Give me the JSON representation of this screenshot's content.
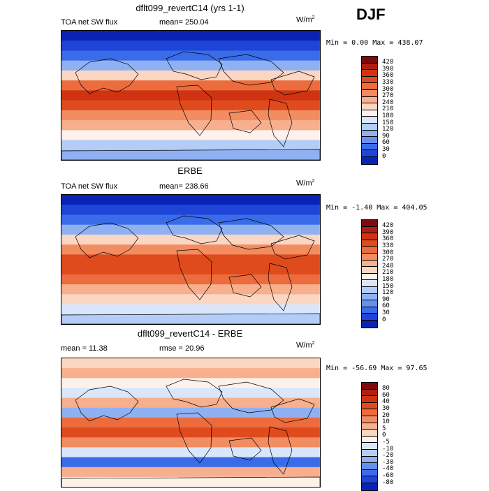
{
  "season": "DJF",
  "panels": [
    {
      "title": "dflt099_revertC14 (yrs 1-1)",
      "left_label": "TOA net SW flux",
      "stat_label": "mean= 250.04",
      "units": "W/m",
      "units_exp": "2",
      "minmax": "Min =   0.00 Max = 438.07",
      "colorbar": {
        "labels": [
          "420",
          "390",
          "360",
          "330",
          "300",
          "270",
          "240",
          "210",
          "180",
          "150",
          "120",
          "90",
          "60",
          "30",
          "0"
        ],
        "colors": [
          "#7d0b0b",
          "#b01f10",
          "#cf3311",
          "#e04b1d",
          "#ec6c3d",
          "#f28c61",
          "#f7af8e",
          "#fbd6c2",
          "#fdf1e9",
          "#d9e6fb",
          "#b3cdf7",
          "#8fb1f2",
          "#6591ee",
          "#3a6ce9",
          "#1e45d8",
          "#0a23b5"
        ]
      },
      "bands": [
        "#0a23b5",
        "#1e45d8",
        "#3a6ce9",
        "#8fb1f2",
        "#fbd6c2",
        "#ec6c3d",
        "#cf3311",
        "#e04b1d",
        "#f28c61",
        "#f7af8e",
        "#fdf1e9",
        "#b3cdf7",
        "#8fb1f2"
      ]
    },
    {
      "title": "ERBE",
      "left_label": "TOA net SW flux",
      "stat_label": "mean= 238.66",
      "units": "W/m",
      "units_exp": "2",
      "minmax": "Min =  -1.40 Max = 404.05",
      "colorbar": {
        "labels": [
          "420",
          "390",
          "360",
          "330",
          "300",
          "270",
          "240",
          "210",
          "180",
          "150",
          "120",
          "90",
          "60",
          "30",
          "0"
        ],
        "colors": [
          "#7d0b0b",
          "#b01f10",
          "#cf3311",
          "#e04b1d",
          "#ec6c3d",
          "#f28c61",
          "#f7af8e",
          "#fbd6c2",
          "#fdf1e9",
          "#d9e6fb",
          "#b3cdf7",
          "#8fb1f2",
          "#6591ee",
          "#3a6ce9",
          "#1e45d8",
          "#0a23b5"
        ]
      },
      "bands": [
        "#0a23b5",
        "#1e45d8",
        "#3a6ce9",
        "#8fb1f2",
        "#fbd6c2",
        "#f28c61",
        "#e04b1d",
        "#e04b1d",
        "#ec6c3d",
        "#f7af8e",
        "#fbd6c2",
        "#d9e6fb",
        "#b3cdf7"
      ]
    },
    {
      "title": "dflt099_revertC14 - ERBE",
      "left_label": "mean =  11.38",
      "stat_label": "rmse =  20.96",
      "units": "W/m",
      "units_exp": "2",
      "minmax": "Min = -56.69 Max =  97.65",
      "colorbar": {
        "labels": [
          "80",
          "60",
          "40",
          "30",
          "20",
          "10",
          "5",
          "0",
          "-5",
          "-10",
          "-20",
          "-30",
          "-40",
          "-60",
          "-80"
        ],
        "colors": [
          "#7d0b0b",
          "#b01f10",
          "#cf3311",
          "#e04b1d",
          "#ec6c3d",
          "#f28c61",
          "#f7af8e",
          "#fbd6c2",
          "#fdf1e9",
          "#d9e6fb",
          "#b3cdf7",
          "#8fb1f2",
          "#6591ee",
          "#3a6ce9",
          "#1e45d8",
          "#0a23b5"
        ]
      },
      "bands": [
        "#fbd6c2",
        "#f7af8e",
        "#fdf1e9",
        "#d9e6fb",
        "#f7af8e",
        "#8fb1f2",
        "#ec6c3d",
        "#e04b1d",
        "#f28c61",
        "#d9e6fb",
        "#3a6ce9",
        "#f7af8e",
        "#fdf1e9"
      ]
    }
  ],
  "chart_data": [
    {
      "type": "heatmap",
      "title": "dflt099_revertC14 (yrs 1-1)",
      "subtitle": "TOA net SW flux",
      "units": "W/m2",
      "mean": 250.04,
      "min": 0.0,
      "max": 438.07,
      "levels": [
        0,
        30,
        60,
        90,
        120,
        150,
        180,
        210,
        240,
        270,
        300,
        330,
        360,
        390,
        420
      ]
    },
    {
      "type": "heatmap",
      "title": "ERBE",
      "subtitle": "TOA net SW flux",
      "units": "W/m2",
      "mean": 238.66,
      "min": -1.4,
      "max": 404.05,
      "levels": [
        0,
        30,
        60,
        90,
        120,
        150,
        180,
        210,
        240,
        270,
        300,
        330,
        360,
        390,
        420
      ]
    },
    {
      "type": "heatmap",
      "title": "dflt099_revertC14 - ERBE",
      "units": "W/m2",
      "mean": 11.38,
      "rmse": 20.96,
      "min": -56.69,
      "max": 97.65,
      "levels": [
        -80,
        -60,
        -40,
        -30,
        -20,
        -10,
        -5,
        0,
        5,
        10,
        20,
        30,
        40,
        60,
        80
      ]
    }
  ]
}
